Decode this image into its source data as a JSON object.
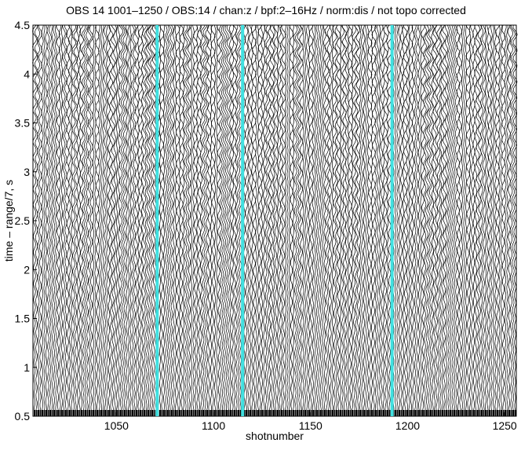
{
  "chart_data": {
    "type": "record-section",
    "title": "OBS 14 1001–1250 / OBS:14 / chan:z / bpf:2–16Hz / norm:dis / not topo corrected",
    "x_label": "shotnumber",
    "y_label": "time – range/7, s",
    "xlim": [
      1007,
      1256
    ],
    "xticks": [
      1050,
      1100,
      1150,
      1200,
      1250
    ],
    "ylim": [
      0.5,
      4.5
    ],
    "yticks": [
      0.5,
      1,
      1.5,
      2,
      2.5,
      3,
      3.5,
      4,
      4.5
    ],
    "highlight_shots": {
      "color": "#40e0e0",
      "values": [
        1071,
        1115,
        1192
      ]
    }
  }
}
